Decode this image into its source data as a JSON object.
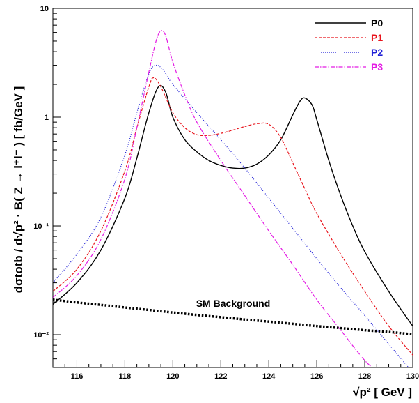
{
  "chart_data": {
    "type": "line",
    "xlabel": "√p² [ GeV ]",
    "ylabel": "dσtotb / d√p² · B( Z → l⁺l⁻ ) [ fb/GeV ]",
    "xlim": [
      115,
      130
    ],
    "ylim": [
      0.005,
      10
    ],
    "yscale": "log",
    "xticks": [
      "116",
      "118",
      "120",
      "122",
      "124",
      "126",
      "128",
      "130"
    ],
    "yticks": [
      "10",
      "1",
      "10⁻¹",
      "10⁻²"
    ],
    "grid": false,
    "legend_position": "top-right",
    "series": [
      {
        "name": "P0",
        "color": "#000000",
        "style": "solid",
        "x": [
          115,
          116,
          117,
          118,
          118.5,
          119,
          119.4,
          119.7,
          120,
          120.5,
          121,
          121.5,
          122,
          122.5,
          123,
          123.5,
          124,
          124.5,
          125,
          125.3,
          125.5,
          125.8,
          126,
          126.5,
          127,
          127.5,
          128,
          129,
          130
        ],
        "y": [
          0.019,
          0.03,
          0.06,
          0.18,
          0.42,
          1.1,
          1.9,
          1.7,
          1.0,
          0.62,
          0.48,
          0.4,
          0.36,
          0.34,
          0.34,
          0.37,
          0.45,
          0.62,
          1.05,
          1.4,
          1.5,
          1.3,
          0.95,
          0.4,
          0.19,
          0.1,
          0.058,
          0.025,
          0.012
        ]
      },
      {
        "name": "P1",
        "color": "#e8141c",
        "style": "dashed",
        "x": [
          115,
          116,
          117,
          118,
          118.5,
          119,
          119.2,
          119.5,
          120,
          120.5,
          121,
          121.5,
          122,
          122.5,
          123,
          123.5,
          124,
          124.5,
          125,
          125.5,
          126,
          127,
          128,
          129,
          130
        ],
        "y": [
          0.025,
          0.04,
          0.09,
          0.32,
          0.8,
          1.9,
          2.3,
          1.9,
          1.1,
          0.8,
          0.69,
          0.68,
          0.71,
          0.76,
          0.82,
          0.87,
          0.86,
          0.65,
          0.38,
          0.22,
          0.13,
          0.055,
          0.025,
          0.012,
          0.0065
        ]
      },
      {
        "name": "P2",
        "color": "#1f1fd6",
        "style": "dotted",
        "x": [
          115,
          116,
          117,
          118,
          118.5,
          119,
          119.3,
          119.6,
          120,
          121,
          122,
          123,
          124,
          125,
          126,
          127,
          128,
          129,
          130
        ],
        "y": [
          0.03,
          0.055,
          0.12,
          0.45,
          1.1,
          2.5,
          3.0,
          2.7,
          2.0,
          1.1,
          0.62,
          0.34,
          0.18,
          0.095,
          0.05,
          0.027,
          0.015,
          0.0082,
          0.0045
        ]
      },
      {
        "name": "P3",
        "color": "#e41ae4",
        "style": "dashdot",
        "x": [
          115,
          116,
          117,
          118,
          118.5,
          119,
          119.3,
          119.5,
          119.7,
          120,
          120.5,
          121,
          122,
          123,
          124,
          125,
          126,
          127,
          128,
          128.6
        ],
        "y": [
          0.022,
          0.035,
          0.075,
          0.27,
          0.8,
          2.6,
          5.0,
          6.2,
          5.6,
          3.2,
          1.6,
          0.9,
          0.4,
          0.19,
          0.09,
          0.044,
          0.021,
          0.011,
          0.0058,
          0.0045
        ]
      },
      {
        "name": "SM Background",
        "color": "#000000",
        "style": "thickdotted",
        "x": [
          115,
          116,
          117,
          118,
          119,
          120,
          121,
          122,
          123,
          124,
          125,
          126,
          127,
          128,
          129,
          130
        ],
        "y": [
          0.021,
          0.0198,
          0.0188,
          0.0178,
          0.0169,
          0.016,
          0.0152,
          0.0145,
          0.0138,
          0.0132,
          0.0126,
          0.012,
          0.0115,
          0.011,
          0.0106,
          0.0101
        ]
      }
    ],
    "legend": [
      "P0",
      "P1",
      "P2",
      "P3"
    ],
    "annotation": "SM Background"
  }
}
